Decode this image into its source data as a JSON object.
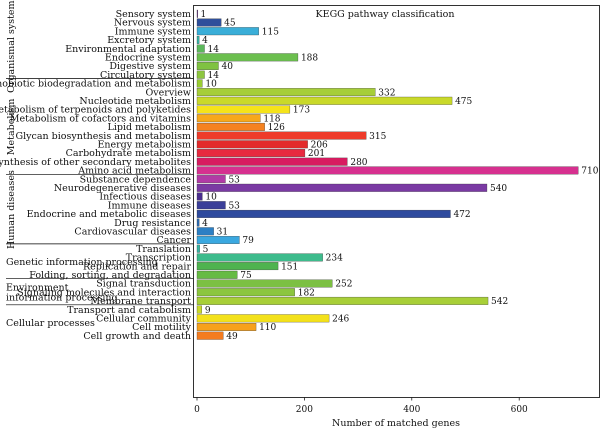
{
  "chart_data": {
    "type": "bar",
    "orientation": "horizontal",
    "title": "KEGG pathway classification",
    "xlabel": "Number of matched genes",
    "ylabel": "",
    "xlim": [
      0,
      730
    ],
    "xticks": [
      0,
      200,
      400,
      600
    ],
    "grid": false,
    "groups": [
      {
        "label": "Organismal systems",
        "lines": [
          "Organismal systems"
        ],
        "items": [
          {
            "name": "Sensory system",
            "value": 1,
            "color": "#6a2c91"
          },
          {
            "name": "Nervous system",
            "value": 45,
            "color": "#2f4f9b"
          },
          {
            "name": "Immune system",
            "value": 115,
            "color": "#3aaed8"
          },
          {
            "name": "Excretory system",
            "value": 4,
            "color": "#36b3a6"
          },
          {
            "name": "Environmental adaptation",
            "value": 14,
            "color": "#5cb85c"
          },
          {
            "name": "Endocrine system",
            "value": 188,
            "color": "#6cbf4f"
          },
          {
            "name": "Digestive system",
            "value": 40,
            "color": "#7fc241"
          },
          {
            "name": "Circulatory system",
            "value": 14,
            "color": "#8dc63f"
          }
        ]
      },
      {
        "label": "Metabolism",
        "lines": [
          "Metabolism"
        ],
        "items": [
          {
            "name": "Xenobiotic biodegradation and metabolism",
            "value": 10,
            "color": "#9acd32"
          },
          {
            "name": "Overview",
            "value": 332,
            "color": "#a6ce39"
          },
          {
            "name": "Nucleotide metabolism",
            "value": 475,
            "color": "#c9d92a"
          },
          {
            "name": "Metabolism of terpenoids and polyketides",
            "value": 173,
            "color": "#f5e31a"
          },
          {
            "name": "Metabolism of cofactors and vitamins",
            "value": 118,
            "color": "#f7a81b"
          },
          {
            "name": "Lipid metabolism",
            "value": 126,
            "color": "#f58220"
          },
          {
            "name": "Glycan biosynthesis and metabolism",
            "value": 315,
            "color": "#ee3b2a"
          },
          {
            "name": "Energy metabolism",
            "value": 206,
            "color": "#e32b2b"
          },
          {
            "name": "Carbohydrate metabolism",
            "value": 201,
            "color": "#e8293f"
          },
          {
            "name": "Biosynthesis of other secondary metabolites",
            "value": 280,
            "color": "#d81b60"
          },
          {
            "name": "Amino acid metabolism",
            "value": 710,
            "color": "#d6308f"
          }
        ]
      },
      {
        "label": "Human diseases",
        "lines": [
          "Human diseases"
        ],
        "items": [
          {
            "name": "Substance dependence",
            "value": 53,
            "color": "#b23aa6"
          },
          {
            "name": "Neurodegenerative diseases",
            "value": 540,
            "color": "#7a3aa3"
          },
          {
            "name": "Infectious diseases",
            "value": 10,
            "color": "#4b2f8f"
          },
          {
            "name": "Immune diseases",
            "value": 53,
            "color": "#3b3f99"
          },
          {
            "name": "Endocrine and metabolic diseases",
            "value": 472,
            "color": "#2e4a9e"
          },
          {
            "name": "Drug resistance",
            "value": 4,
            "color": "#2d6ab0"
          },
          {
            "name": "Cardiovascular diseases",
            "value": 31,
            "color": "#2c7fc4"
          },
          {
            "name": "Cancer",
            "value": 79,
            "color": "#3aa8e0"
          }
        ]
      },
      {
        "label": "Genetic information processing",
        "lines": [
          "Genetic information processing"
        ],
        "items": [
          {
            "name": "Translation",
            "value": 5,
            "color": "#35b6a5"
          },
          {
            "name": "Transcription",
            "value": 234,
            "color": "#3dbb8c"
          },
          {
            "name": "Replication and repair",
            "value": 151,
            "color": "#4fb34f"
          },
          {
            "name": "Folding, sorting, and degradation",
            "value": 75,
            "color": "#66bb44"
          }
        ]
      },
      {
        "label": "Environment information processing",
        "lines": [
          "Environment",
          "information processing"
        ],
        "items": [
          {
            "name": "Signal transduction",
            "value": 252,
            "color": "#7cc043"
          },
          {
            "name": "Signaling molecules and interaction",
            "value": 182,
            "color": "#8cc63f"
          },
          {
            "name": "Membrane transport",
            "value": 542,
            "color": "#a8cf38"
          }
        ]
      },
      {
        "label": "Cellular processes",
        "lines": [
          "Cellular processes"
        ],
        "items": [
          {
            "name": "Transport and catabolism",
            "value": 9,
            "color": "#c9d92a"
          },
          {
            "name": "Cellular community",
            "value": 246,
            "color": "#f3e11b"
          },
          {
            "name": "Cell motility",
            "value": 110,
            "color": "#f7a11c"
          },
          {
            "name": "Cell growth and death",
            "value": 49,
            "color": "#f47c20"
          }
        ]
      }
    ],
    "extra_colors": [
      "#ef4b2c",
      "#e0282e"
    ]
  }
}
